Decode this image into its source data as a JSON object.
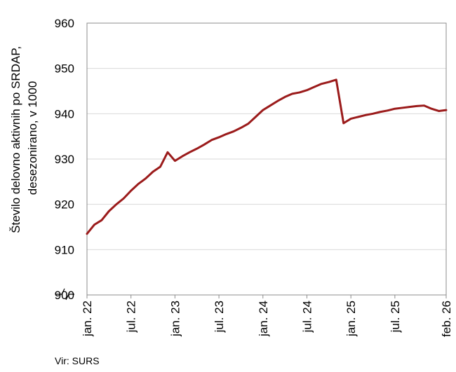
{
  "chart_data": {
    "type": "line",
    "ylabel_lines": [
      "Število delovno aktivnih po SRDAP,",
      "desezonirano, v 1000"
    ],
    "ylim": [
      900,
      960
    ],
    "yticks": [
      900,
      910,
      920,
      930,
      940,
      950,
      960
    ],
    "grid": true,
    "xtick_labels": [
      "jan. 22",
      "jul. 22",
      "jan. 23",
      "jul. 23",
      "jan. 24",
      "jul. 24",
      "jan. 25",
      "jul. 25",
      "feb. 26"
    ],
    "xtick_months": [
      0,
      6,
      12,
      18,
      24,
      30,
      36,
      42,
      49
    ],
    "series": [
      {
        "color": "#9b1b1b",
        "x": [
          "2022-01",
          "2022-02",
          "2022-03",
          "2022-04",
          "2022-05",
          "2022-06",
          "2022-07",
          "2022-08",
          "2022-09",
          "2022-10",
          "2022-11",
          "2022-12",
          "2023-01",
          "2023-02",
          "2023-03",
          "2023-04",
          "2023-05",
          "2023-06",
          "2023-07",
          "2023-08",
          "2023-09",
          "2023-10",
          "2023-11",
          "2023-12",
          "2024-01",
          "2024-02",
          "2024-03",
          "2024-04",
          "2024-05",
          "2024-06",
          "2024-07",
          "2024-08",
          "2024-09",
          "2024-10",
          "2024-11",
          "2024-12",
          "2025-01",
          "2025-02",
          "2025-03",
          "2025-04",
          "2025-05",
          "2025-06",
          "2025-07",
          "2025-08",
          "2025-09",
          "2025-10",
          "2025-11",
          "2025-12",
          "2026-01",
          "2026-02"
        ],
        "values": [
          913.5,
          915.5,
          916.5,
          918.5,
          920.0,
          921.3,
          923.0,
          924.5,
          925.7,
          927.2,
          928.3,
          931.5,
          929.6,
          930.6,
          931.5,
          932.3,
          933.2,
          934.2,
          934.8,
          935.5,
          936.1,
          936.9,
          937.8,
          939.3,
          940.8,
          941.8,
          942.8,
          943.7,
          944.4,
          944.7,
          945.2,
          945.9,
          946.6,
          947.0,
          947.5,
          937.9,
          938.9,
          939.3,
          939.7,
          940.0,
          940.4,
          940.7,
          941.1,
          941.3,
          941.5,
          941.7,
          941.8,
          941.1,
          940.6,
          940.8
        ]
      }
    ],
    "source": "Vir: SURS"
  },
  "colors": {
    "line": "#9b1b1b",
    "grid": "#d9d9d9",
    "axis": "#8c8c8c"
  }
}
